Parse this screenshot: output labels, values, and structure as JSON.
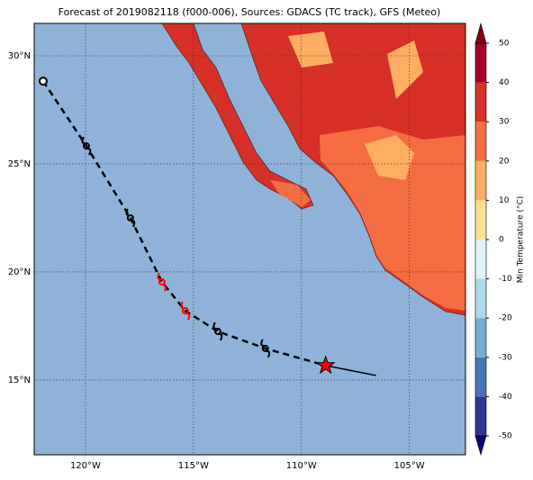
{
  "chart_data": {
    "type": "map",
    "title": "Forecast of 2019082118 (f000-006), Sources: GDACS (TC track), GFS (Meteo)",
    "xlim": [
      -122.375,
      -102.4
    ],
    "ylim": [
      11.54,
      31.5
    ],
    "xticks": [
      {
        "value": -120,
        "label": "120°W"
      },
      {
        "value": -115,
        "label": "115°W"
      },
      {
        "value": -110,
        "label": "110°W"
      },
      {
        "value": -105,
        "label": "105°W"
      }
    ],
    "yticks": [
      {
        "value": 30,
        "label": "30°N"
      },
      {
        "value": 25,
        "label": "25°N"
      },
      {
        "value": 20,
        "label": "20°N"
      },
      {
        "value": 15,
        "label": "15°N"
      }
    ],
    "grid": true,
    "track": {
      "lon": [
        -121.96,
        -119.96,
        -117.92,
        -116.46,
        -115.375,
        -113.875,
        -111.67,
        -108.875
      ],
      "lat": [
        28.83,
        25.83,
        22.5,
        19.54,
        18.2,
        17.25,
        16.46,
        15.67
      ],
      "symbols": [
        "circle",
        "cyclone",
        "cyclone",
        "cyclone",
        "cyclone",
        "cyclone",
        "cyclone",
        "star"
      ],
      "colors": [
        "#000000",
        "#000000",
        "#000000",
        "#ff0000",
        "#ff0000",
        "#000000",
        "#000000",
        "#ff0000"
      ]
    },
    "extension": {
      "lon": [
        -108.875,
        -106.54
      ],
      "lat": [
        15.67,
        15.21
      ]
    },
    "colorbar": {
      "label": "Min Temperature (°C)",
      "ticks": [
        -50,
        -40,
        -30,
        -20,
        -10,
        0,
        10,
        20,
        30,
        40,
        50
      ],
      "colors": [
        "#313695",
        "#4575b4",
        "#74add1",
        "#abd9e9",
        "#e0f3f8",
        "#fee090",
        "#fdae61",
        "#f46d43",
        "#d73027",
        "#a50026"
      ],
      "under_color": "#080870",
      "over_color": "#800015"
    }
  }
}
